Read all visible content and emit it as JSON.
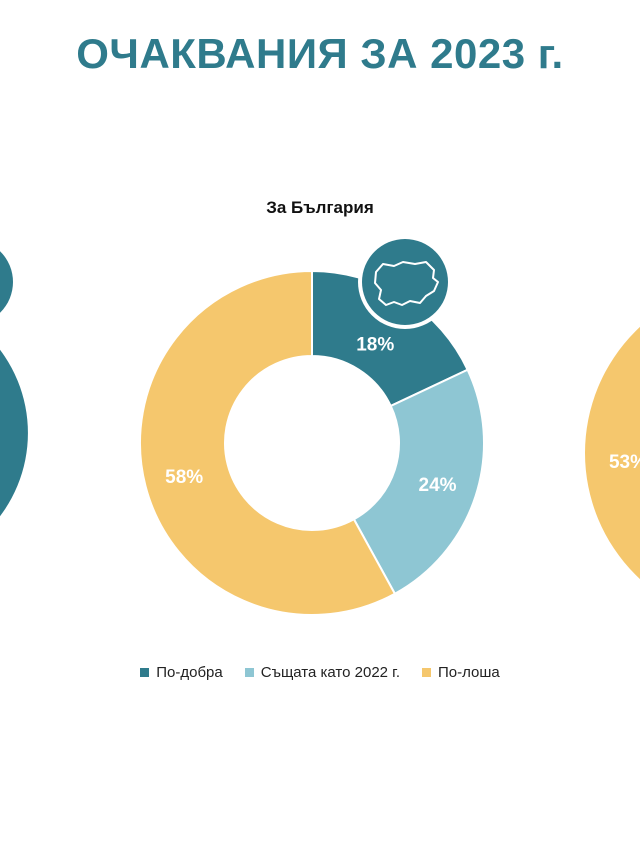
{
  "page": {
    "title": "ОЧАКВАНИЯ ЗА 2023 г."
  },
  "colors": {
    "better": "#2f7b8c",
    "same": "#8ec6d3",
    "worse": "#f5c76d",
    "label_dark": "#1f4f5a",
    "label_light": "#ffffff"
  },
  "icons": {
    "badge": "bulgaria-map-icon"
  },
  "chart_data": [
    {
      "type": "pie",
      "title": "",
      "visibility": "partial-left",
      "categories": [
        "По-добра"
      ],
      "values": [
        null
      ]
    },
    {
      "type": "pie",
      "title": "За България",
      "categories": [
        "По-добра",
        "Същата като 2022 г.",
        "По-лоша"
      ],
      "values": [
        18,
        24,
        58
      ],
      "labels": [
        "18%",
        "24%",
        "58%"
      ],
      "legend_position": "bottom"
    },
    {
      "type": "pie",
      "title": "",
      "visibility": "partial-right",
      "categories": [
        "По-лоша"
      ],
      "values": [
        53
      ],
      "labels": [
        "53%"
      ]
    }
  ],
  "legend": [
    {
      "label": "По-добра",
      "color": "#2f7b8c"
    },
    {
      "label": "Същата като 2022 г.",
      "color": "#8ec6d3"
    },
    {
      "label": "По-лоша",
      "color": "#f5c76d"
    }
  ]
}
